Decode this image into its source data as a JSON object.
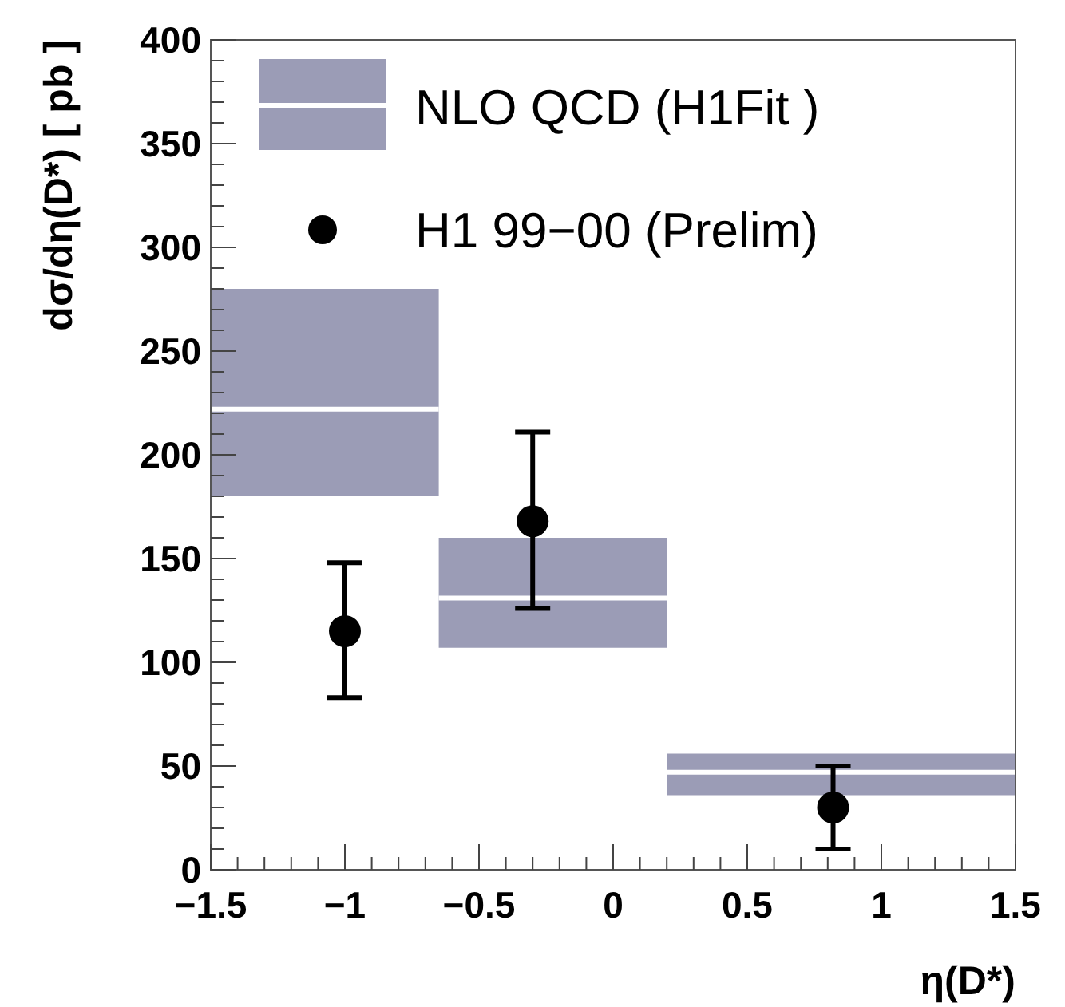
{
  "chart_data": {
    "type": "scatter",
    "xlabel": "η(D*)",
    "ylabel": "dσ/dη(D*) [ pb ]",
    "xlim": [
      -1.5,
      1.5
    ],
    "ylim": [
      0,
      400
    ],
    "xticks": [
      {
        "value": -1.5,
        "label": "−1.5"
      },
      {
        "value": -1,
        "label": "−1"
      },
      {
        "value": -0.5,
        "label": "−0.5"
      },
      0,
      0.5,
      1,
      1.5
    ],
    "yticks": [
      0,
      50,
      100,
      150,
      200,
      250,
      300,
      350,
      400
    ],
    "legend": "top left",
    "series": [
      {
        "type": "line",
        "name": "NLO QCD (H1Fit )",
        "color": "#ffffff",
        "marker": "none",
        "x": [
          -1.5,
          -0.65
        ],
        "values": [
          222,
          222
        ],
        "lower": [
          180,
          180
        ],
        "upper": [
          280,
          280
        ]
      },
      {
        "type": "line",
        "color": "#ffffff",
        "marker": "none",
        "x": [
          -0.65,
          0.2
        ],
        "values": [
          131,
          131
        ],
        "lower": [
          107,
          107
        ],
        "upper": [
          160,
          160
        ]
      },
      {
        "type": "line",
        "color": "#ffffff",
        "marker": "none",
        "x": [
          0.2,
          1.5
        ],
        "values": [
          47,
          47
        ],
        "lower": [
          36,
          36
        ],
        "upper": [
          56,
          56
        ]
      },
      {
        "name": "H1 99−00 (Prelim)",
        "color": "#000000",
        "marker": "circle",
        "x": [
          -1.0,
          -0.3,
          0.82
        ],
        "values": [
          115,
          168,
          30
        ],
        "errors": [
          [
            83,
            148
          ],
          [
            126,
            211
          ],
          [
            10,
            50
          ]
        ]
      }
    ]
  }
}
